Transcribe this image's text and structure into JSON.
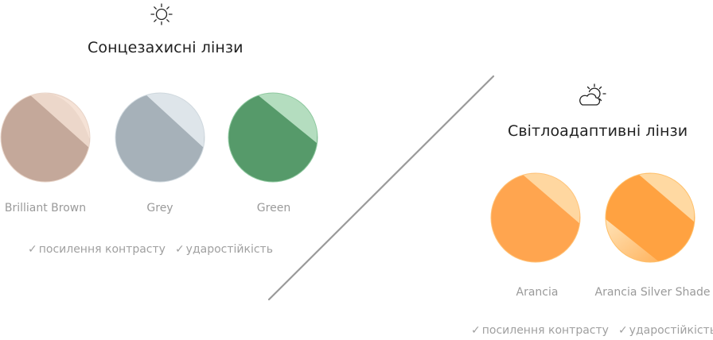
{
  "sun_section": {
    "icon": "sun-icon",
    "title": "Сонцезахисні лінзи",
    "lenses": [
      {
        "label": "Brilliant Brown",
        "color": "#c4a89a",
        "edge": "#e8d4c8",
        "highlight": "#fbeee6"
      },
      {
        "label": "Grey",
        "color": "#a6b1b9",
        "edge": "#cfd8de",
        "highlight": "#eef3f6"
      },
      {
        "label": "Green",
        "color": "#569a6a",
        "edge": "#8fc9a0",
        "highlight": "#d8f0df"
      }
    ],
    "features": [
      "посилення контрасту",
      "ударостійкість"
    ]
  },
  "photo_section": {
    "icon": "sun-cloud-icon",
    "title": "Світлоадаптивні лінзи",
    "lenses": [
      {
        "label": "Arancia",
        "color": "#ffa54f",
        "edge": "#ffc47a",
        "highlight": "#fff0d6"
      },
      {
        "label": "Arancia Silver Shade",
        "color": "#ffa241",
        "edge": "#ffc06a",
        "highlight": "#fff2dc"
      }
    ],
    "features": [
      "посилення контрасту",
      "ударостійкість"
    ]
  },
  "check_mark": "✓"
}
